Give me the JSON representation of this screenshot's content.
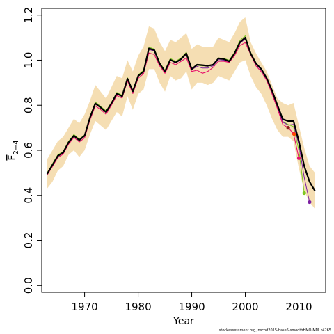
{
  "chart_data": {
    "type": "line",
    "xlabel": "Year",
    "ylabel_main": "F",
    "ylabel_sub": "2−4",
    "xlim": [
      1962,
      2015
    ],
    "ylim": [
      -0.03,
      1.23
    ],
    "x_ticks": [
      1970,
      1980,
      1990,
      2000,
      2010
    ],
    "x_tick_labels": [
      "1970",
      "1980",
      "1990",
      "2000",
      "2010"
    ],
    "y_ticks": [
      0.0,
      0.2,
      0.4,
      0.6,
      0.8,
      1.0,
      1.2
    ],
    "y_tick_labels": [
      "0.0",
      "0.2",
      "0.4",
      "0.6",
      "0.8",
      "1.0",
      "1.2"
    ],
    "band": {
      "color": "#F5DEB3",
      "x": [
        1963,
        1964,
        1965,
        1966,
        1967,
        1968,
        1969,
        1970,
        1971,
        1972,
        1973,
        1974,
        1975,
        1976,
        1977,
        1978,
        1979,
        1980,
        1981,
        1982,
        1983,
        1984,
        1985,
        1986,
        1987,
        1988,
        1989,
        1990,
        1991,
        1992,
        1993,
        1994,
        1995,
        1996,
        1997,
        1998,
        1999,
        2000,
        2001,
        2002,
        2003,
        2004,
        2005,
        2006,
        2007,
        2008,
        2009,
        2010,
        2011,
        2012,
        2013
      ],
      "upper": [
        0.56,
        0.6,
        0.64,
        0.66,
        0.7,
        0.74,
        0.72,
        0.76,
        0.82,
        0.89,
        0.86,
        0.83,
        0.88,
        0.93,
        0.92,
        1.0,
        0.95,
        1.02,
        1.06,
        1.15,
        1.14,
        1.08,
        1.04,
        1.09,
        1.08,
        1.1,
        1.12,
        1.05,
        1.07,
        1.06,
        1.06,
        1.06,
        1.1,
        1.09,
        1.08,
        1.12,
        1.17,
        1.19,
        1.08,
        1.03,
        0.99,
        0.95,
        0.89,
        0.83,
        0.81,
        0.8,
        0.81,
        0.71,
        0.61,
        0.53,
        0.5
      ],
      "lower": [
        0.43,
        0.46,
        0.51,
        0.53,
        0.58,
        0.6,
        0.57,
        0.6,
        0.67,
        0.73,
        0.71,
        0.69,
        0.73,
        0.77,
        0.75,
        0.84,
        0.78,
        0.85,
        0.87,
        0.96,
        0.96,
        0.9,
        0.86,
        0.93,
        0.91,
        0.92,
        0.95,
        0.87,
        0.9,
        0.9,
        0.89,
        0.9,
        0.93,
        0.92,
        0.91,
        0.95,
        0.99,
        1.0,
        0.93,
        0.88,
        0.85,
        0.8,
        0.74,
        0.69,
        0.66,
        0.66,
        0.64,
        0.52,
        0.42,
        0.37,
        0.34
      ]
    },
    "series": [
      {
        "color": "#000000",
        "width": 2.2,
        "x": [
          1963,
          1964,
          1965,
          1966,
          1967,
          1968,
          1969,
          1970,
          1971,
          1972,
          1973,
          1974,
          1975,
          1976,
          1977,
          1978,
          1979,
          1980,
          1981,
          1982,
          1983,
          1984,
          1985,
          1986,
          1987,
          1988,
          1989,
          1990,
          1991,
          1992,
          1993,
          1994,
          1995,
          1996,
          1997,
          1998,
          1999,
          2000,
          2001,
          2002,
          2003,
          2004,
          2005,
          2006,
          2007,
          2008,
          2009,
          2010,
          2011,
          2012,
          2013
        ],
        "y": [
          0.495,
          0.535,
          0.575,
          0.59,
          0.635,
          0.665,
          0.645,
          0.665,
          0.745,
          0.808,
          0.79,
          0.77,
          0.808,
          0.852,
          0.84,
          0.918,
          0.862,
          0.93,
          0.95,
          1.052,
          1.045,
          0.985,
          0.95,
          1.002,
          0.99,
          1.005,
          1.03,
          0.96,
          0.98,
          0.978,
          0.975,
          0.98,
          1.008,
          1.005,
          0.995,
          1.03,
          1.08,
          1.1,
          1.03,
          0.985,
          0.96,
          0.92,
          0.865,
          0.8,
          0.738,
          0.73,
          0.73,
          0.64,
          0.53,
          0.46,
          0.42
        ]
      },
      {
        "color": "#E8116B",
        "width": 1.1,
        "x": [
          1963,
          1964,
          1965,
          1966,
          1967,
          1968,
          1969,
          1970,
          1971,
          1972,
          1973,
          1974,
          1975,
          1976,
          1977,
          1978,
          1979,
          1980,
          1981,
          1982,
          1983,
          1984,
          1985,
          1986,
          1987,
          1988,
          1989,
          1990,
          1991,
          1992,
          1993,
          1994,
          1995,
          1996,
          1997,
          1998,
          1999,
          2000,
          2001,
          2002,
          2003,
          2004,
          2005,
          2006,
          2007,
          2008,
          2009,
          2010
        ],
        "y": [
          0.49,
          0.528,
          0.568,
          0.583,
          0.627,
          0.657,
          0.637,
          0.655,
          0.735,
          0.797,
          0.781,
          0.76,
          0.8,
          0.843,
          0.832,
          0.908,
          0.852,
          0.92,
          0.94,
          1.032,
          1.025,
          0.975,
          0.942,
          0.99,
          0.98,
          0.995,
          1.01,
          0.95,
          0.955,
          0.942,
          0.95,
          0.968,
          0.995,
          0.995,
          0.99,
          1.02,
          1.065,
          1.078,
          1.025,
          0.975,
          0.948,
          0.91,
          0.85,
          0.785,
          0.715,
          0.7,
          0.675,
          0.565
        ]
      },
      {
        "color": "#7EC822",
        "width": 1.0,
        "x": [
          1963,
          1964,
          1965,
          1966,
          1967,
          1968,
          1969,
          1970,
          1971,
          1972,
          1973,
          1974,
          1975,
          1976,
          1977,
          1978,
          1979,
          1980,
          1981,
          1982,
          1983,
          1984,
          1985,
          1986,
          1987,
          1988,
          1989,
          1990,
          1991,
          1992,
          1993,
          1994,
          1995,
          1996,
          1997,
          1998,
          1999,
          2000,
          2001,
          2002,
          2003,
          2004,
          2005,
          2006,
          2007,
          2008,
          2009,
          2010,
          2011
        ],
        "y": [
          0.5,
          0.54,
          0.58,
          0.595,
          0.64,
          0.67,
          0.65,
          0.668,
          0.75,
          0.815,
          0.795,
          0.775,
          0.812,
          0.857,
          0.845,
          0.922,
          0.866,
          0.935,
          0.955,
          1.058,
          1.05,
          0.99,
          0.955,
          1.008,
          0.995,
          1.01,
          1.035,
          0.962,
          0.978,
          0.975,
          0.975,
          0.982,
          1.01,
          1.008,
          1.0,
          1.035,
          1.088,
          1.108,
          1.035,
          0.988,
          0.962,
          0.922,
          0.862,
          0.795,
          0.728,
          0.715,
          0.705,
          0.6,
          0.41
        ]
      },
      {
        "color": "#7B1FA2",
        "width": 1.0,
        "x": [
          1963,
          1964,
          1965,
          1966,
          1967,
          1968,
          1969,
          1970,
          1971,
          1972,
          1973,
          1974,
          1975,
          1976,
          1977,
          1978,
          1979,
          1980,
          1981,
          1982,
          1983,
          1984,
          1985,
          1986,
          1987,
          1988,
          1989,
          1990,
          1991,
          1992,
          1993,
          1994,
          1995,
          1996,
          1997,
          1998,
          1999,
          2000,
          2001,
          2002,
          2003,
          2004,
          2005,
          2006,
          2007,
          2008,
          2009,
          2010,
          2011,
          2012
        ],
        "y": [
          0.494,
          0.533,
          0.573,
          0.588,
          0.632,
          0.662,
          0.642,
          0.662,
          0.742,
          0.805,
          0.788,
          0.768,
          0.806,
          0.85,
          0.838,
          0.915,
          0.86,
          0.928,
          0.948,
          1.048,
          1.04,
          0.982,
          0.948,
          1.0,
          0.988,
          1.002,
          1.025,
          0.958,
          0.972,
          0.965,
          0.965,
          0.975,
          1.002,
          1.0,
          0.992,
          1.028,
          1.075,
          1.095,
          1.028,
          0.982,
          0.955,
          0.915,
          0.858,
          0.792,
          0.725,
          0.712,
          0.715,
          0.625,
          0.48,
          0.37
        ]
      }
    ],
    "endpoints": [
      {
        "x": 2008,
        "y": 0.7,
        "color": "#8B1A1A"
      },
      {
        "x": 2009,
        "y": 0.675,
        "color": "#E8116B"
      },
      {
        "x": 2009.1,
        "y": 0.672,
        "color": "#FF4500"
      },
      {
        "x": 2010,
        "y": 0.565,
        "color": "#E8116B"
      },
      {
        "x": 2011,
        "y": 0.41,
        "color": "#7EC822"
      },
      {
        "x": 2012,
        "y": 0.37,
        "color": "#7B1FA2"
      }
    ]
  },
  "footer": "stockassessment.org, nscod2015-base5-smoothHMO-MM, r4265"
}
